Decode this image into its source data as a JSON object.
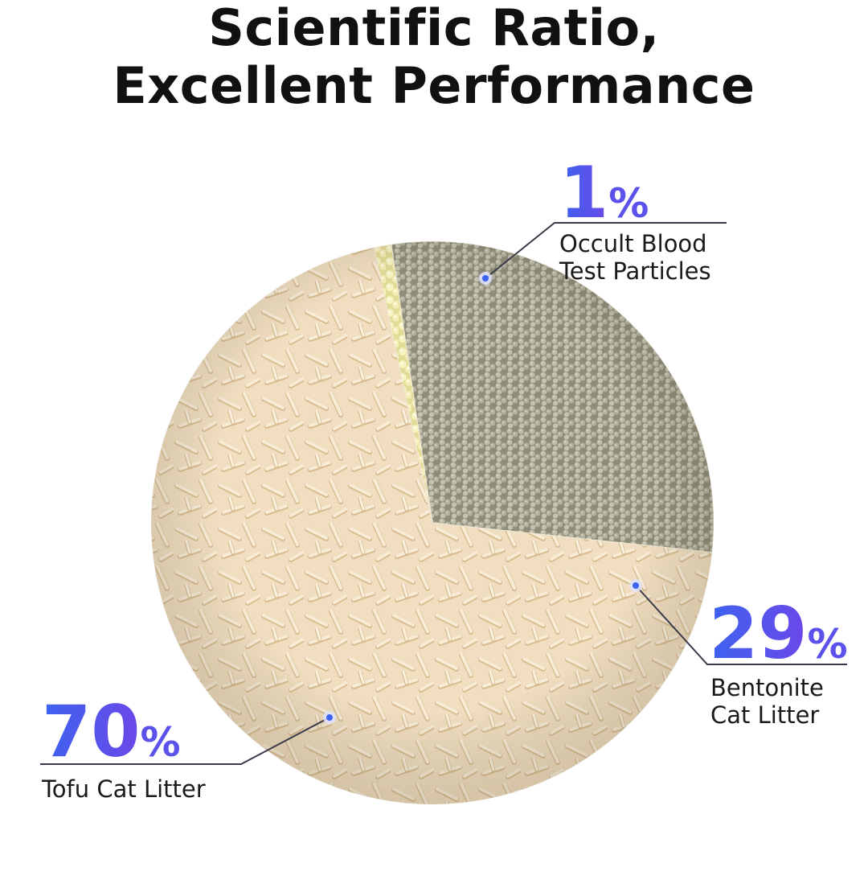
{
  "title": {
    "line1": "Scientific Ratio,",
    "line2": "Excellent Performance"
  },
  "chart_data": {
    "type": "pie",
    "title": "Scientific Ratio, Excellent Performance",
    "slices": [
      {
        "label": "Occult Blood Test Particles",
        "label_line1": "Occult Blood",
        "label_line2": "Test Particles",
        "value": 1,
        "value_text": "1",
        "unit": "%",
        "color": "#f3efb4"
      },
      {
        "label": "Bentonite Cat Litter",
        "label_line1": "Bentonite",
        "label_line2": "Cat Litter",
        "value": 29,
        "value_text": "29",
        "unit": "%",
        "color": "#a8a692"
      },
      {
        "label": "Tofu Cat Litter",
        "label_line1": "Tofu Cat Litter",
        "label_line2": "",
        "value": 70,
        "value_text": "70",
        "unit": "%",
        "color": "#f1dec0"
      }
    ]
  },
  "colors": {
    "accent_blue": "#3d63f0",
    "accent_purple": "#6b48e8",
    "leader_line": "#3a3a4a",
    "tofu_stick": "#f6e9d2",
    "tofu_shadow": "#dcc29a",
    "bentonite_bead": "#b9b8a4",
    "test_bead": "#f8f4c0"
  }
}
